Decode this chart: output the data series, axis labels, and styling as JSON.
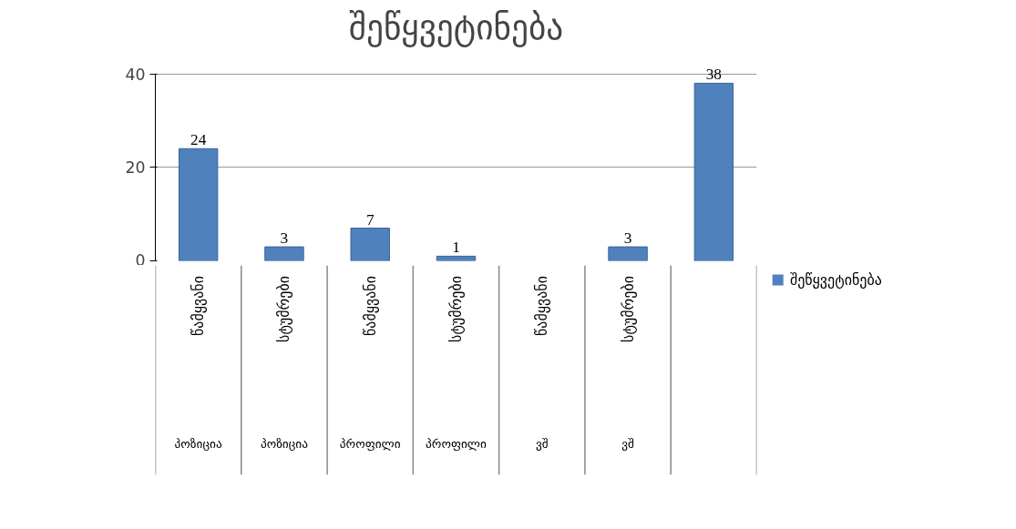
{
  "chart_data": {
    "type": "bar",
    "title": "შეწყვეტინება",
    "categories": [
      "წამყვანი\nპოზიცია",
      "სტუმრები\nპოზიცია",
      "წამყვანი\nპროფილი",
      "სტუმრები\nპროფილი",
      "წამყვანი\nვშ",
      "სტუმრები\nვშ",
      null
    ],
    "series": [
      {
        "name": "შეწყვეტინება",
        "color": "#4f81bd",
        "values": [
          24,
          3,
          7,
          1,
          null,
          3,
          38
        ]
      }
    ],
    "ylim": [
      0,
      40
    ],
    "yticks": [
      0,
      20,
      40
    ],
    "grid": "y",
    "legend": "right",
    "data_labels": true
  }
}
